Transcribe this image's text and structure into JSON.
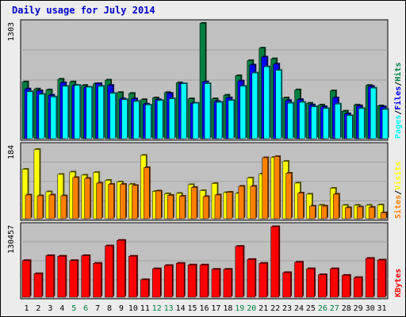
{
  "title": "Daily usage for July 2014",
  "colors": {
    "hits": "#008040",
    "files": "#0000ff",
    "pages": "#00ffff",
    "visits": "#ffff00",
    "sites": "#ff8000",
    "kbytes": "#ff0000",
    "weekend_label": "#008040",
    "plot_bg": "#c0c0c0",
    "frame_bg": "#ececec"
  },
  "chart_data": {
    "type": "bar",
    "categories": [
      "1",
      "2",
      "3",
      "4",
      "5",
      "6",
      "7",
      "8",
      "9",
      "10",
      "11",
      "12",
      "13",
      "14",
      "15",
      "16",
      "17",
      "18",
      "19",
      "20",
      "21",
      "22",
      "23",
      "24",
      "25",
      "26",
      "27",
      "28",
      "29",
      "30",
      "31"
    ],
    "weekend_days": [
      "5",
      "6",
      "12",
      "13",
      "19",
      "20",
      "26",
      "27"
    ],
    "panels": [
      {
        "id": "top",
        "max_label": "1303",
        "ylim": [
          0,
          1303
        ],
        "series": [
          {
            "name": "Hits",
            "color": "#008040",
            "values": [
              640,
              560,
              550,
              670,
              640,
              600,
              620,
              660,
              520,
              510,
              440,
              460,
              520,
              630,
              450,
              1300,
              450,
              490,
              710,
              880,
              1020,
              900,
              460,
              550,
              400,
              380,
              540,
              310,
              380,
              600,
              370
            ]
          },
          {
            "name": "Files",
            "color": "#0000ff",
            "values": [
              560,
              540,
              490,
              630,
              600,
              580,
              620,
              600,
              450,
              450,
              390,
              440,
              510,
              620,
              400,
              640,
              420,
              460,
              650,
              830,
              920,
              840,
              430,
              440,
              380,
              360,
              460,
              280,
              370,
              590,
              360
            ]
          },
          {
            "name": "Pages",
            "color": "#00ffff",
            "values": [
              530,
              500,
              470,
              590,
              600,
              580,
              590,
              510,
              440,
              420,
              380,
              430,
              450,
              620,
              400,
              620,
              410,
              430,
              590,
              740,
              810,
              770,
              400,
              410,
              360,
              340,
              390,
              260,
              340,
              570,
              330
            ]
          }
        ]
      },
      {
        "id": "middle",
        "max_label": "184",
        "ylim": [
          0,
          184
        ],
        "series": [
          {
            "name": "Visits",
            "color": "#ffff00",
            "values": [
              125,
              175,
              68,
              112,
              118,
              110,
              117,
              97,
              93,
              87,
              160,
              69,
              63,
              64,
              86,
              71,
              89,
              66,
              64,
              103,
              113,
              155,
              145,
              90,
              62,
              34,
              77,
              34,
              34,
              34,
              35
            ]
          },
          {
            "name": "Sites",
            "color": "#ff8000",
            "values": [
              60,
              58,
              60,
              58,
              104,
              102,
              90,
              87,
              87,
              84,
              129,
              70,
              59,
              57,
              79,
              56,
              60,
              67,
              82,
              82,
              154,
              157,
              115,
              65,
              32,
              32,
              62,
              28,
              30,
              29,
              15
            ]
          }
        ]
      },
      {
        "id": "bottom",
        "max_label": "130457",
        "ylim": [
          0,
          130457
        ],
        "series": [
          {
            "name": "KBytes",
            "color": "#ff0000",
            "values": [
              67000,
              43000,
              76000,
              75000,
              67000,
              76000,
              62000,
              94000,
              104000,
              75000,
              32000,
              52000,
              58000,
              62000,
              59000,
              59000,
              51000,
              51000,
              93000,
              69000,
              62000,
              129000,
              45000,
              64000,
              52000,
              41000,
              52000,
              40000,
              36000,
              71000,
              68000
            ]
          }
        ]
      }
    ],
    "right_labels": {
      "top": [
        "Pages",
        "Files",
        "Hits"
      ],
      "middle": [
        "Sites",
        "Visits"
      ],
      "bottom": [
        "KBytes"
      ]
    }
  }
}
